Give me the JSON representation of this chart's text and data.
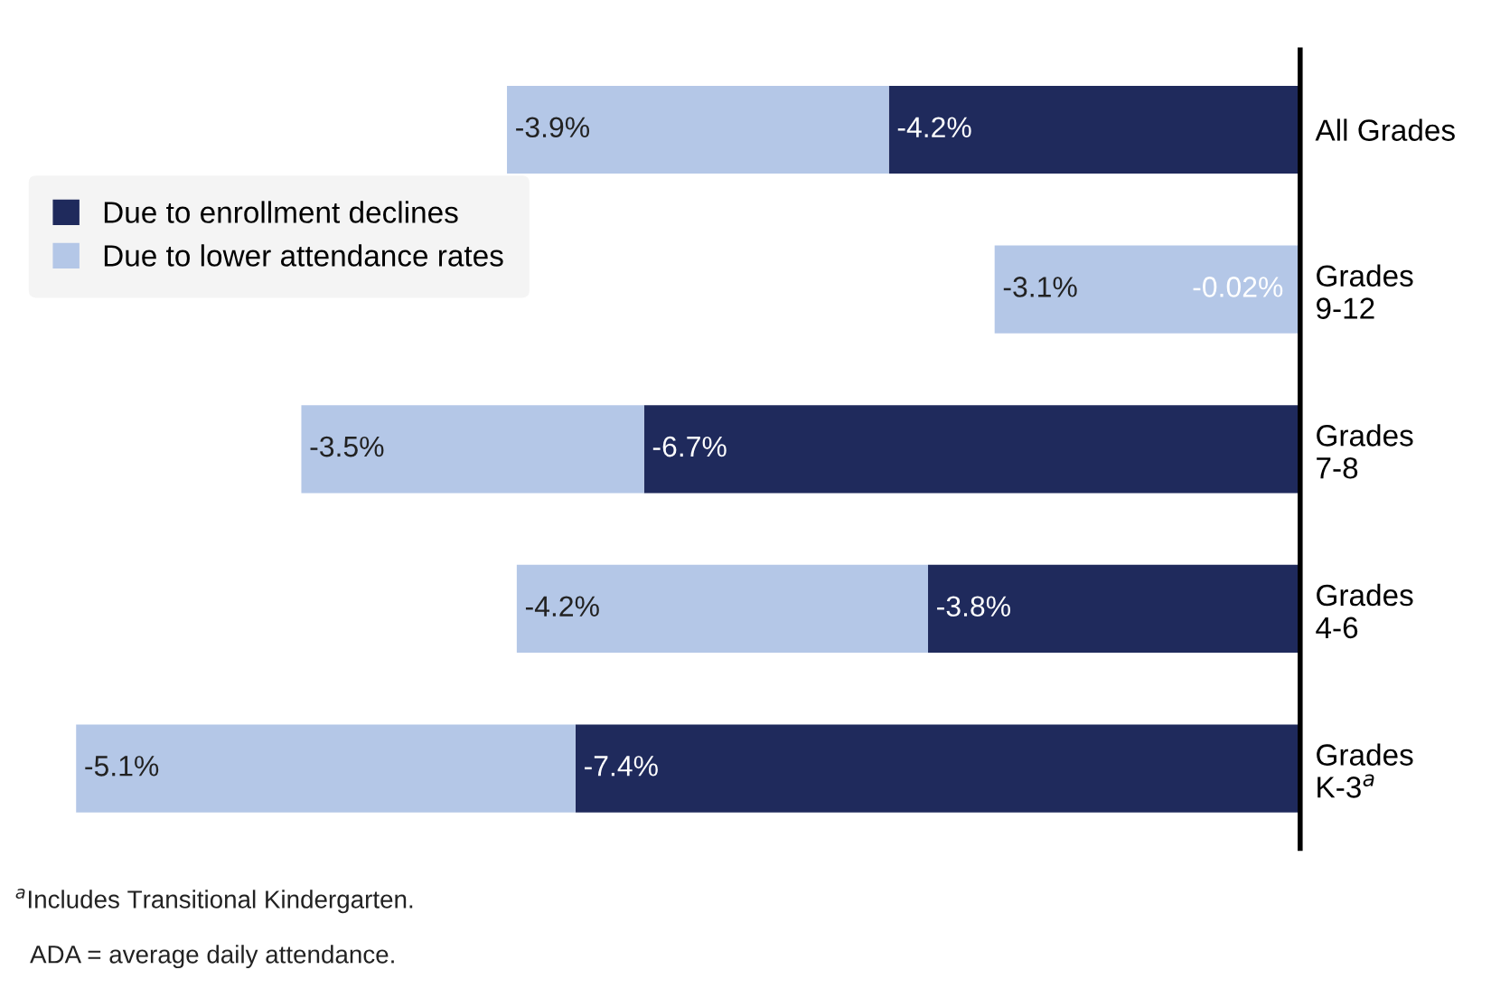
{
  "chart_data": {
    "type": "bar",
    "orientation": "horizontal",
    "stacked": true,
    "categories": [
      "All Grades",
      "Grades\n9-12",
      "Grades\n7-8",
      "Grades\n4-6",
      "Grades\nK-3$^{a}$"
    ],
    "series": [
      {
        "name": "Due to enrollment declines",
        "color": "#1f2a5c",
        "values": [
          -4.2,
          -0.02,
          -6.7,
          -3.8,
          -7.4
        ],
        "value_labels": [
          "-4.2%",
          "-0.02%",
          "-6.7%",
          "-3.8%",
          "-7.4%"
        ]
      },
      {
        "name": "Due to lower attendance rates",
        "color": "#b4c7e7",
        "values": [
          -3.9,
          -3.1,
          -3.5,
          -4.2,
          -5.1
        ],
        "value_labels": [
          "-3.9%",
          "-3.1%",
          "-3.5%",
          "-4.2%",
          "-5.1%"
        ]
      }
    ],
    "legend": "top left",
    "grid": false,
    "annotations": [
      "$^{a}$Includes Transitional Kindergarten.",
      "ADA = average daily attendance."
    ]
  }
}
